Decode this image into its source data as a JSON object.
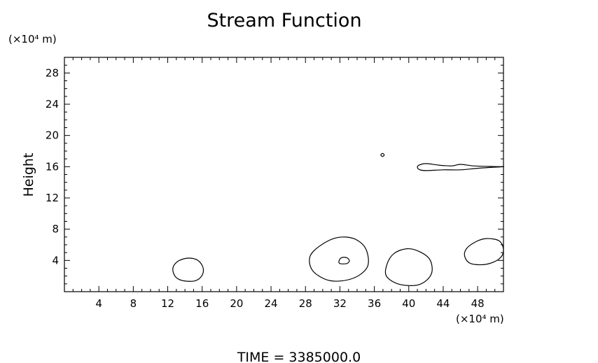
{
  "chart_data": {
    "type": "contour",
    "title": "Stream Function",
    "ylabel": "Height",
    "xlabel": "",
    "y_unit": "(×10⁴ m)",
    "x_unit": "(×10⁴ m)",
    "xlim": [
      0,
      51
    ],
    "ylim": [
      0,
      30
    ],
    "x_ticks": [
      4,
      8,
      12,
      16,
      20,
      24,
      28,
      32,
      36,
      40,
      44,
      48
    ],
    "y_ticks": [
      4,
      8,
      12,
      16,
      20,
      24,
      28
    ],
    "grid": false,
    "footer": "TIME  =  3385000.0",
    "contours": [
      {
        "points": [
          [
            41.0,
            15.9
          ],
          [
            41.2,
            16.2
          ],
          [
            42.0,
            16.4
          ],
          [
            43.5,
            16.2
          ],
          [
            45.0,
            16.1
          ],
          [
            46.0,
            16.3
          ],
          [
            47.5,
            16.1
          ],
          [
            49.0,
            16.05
          ],
          [
            50.5,
            16.0
          ],
          [
            51.0,
            16.0
          ],
          [
            49.5,
            15.9
          ],
          [
            48.0,
            15.8
          ],
          [
            46.0,
            15.6
          ],
          [
            44.0,
            15.6
          ],
          [
            42.0,
            15.5
          ],
          [
            41.3,
            15.6
          ]
        ]
      },
      {
        "points": [
          [
            36.95,
            17.7
          ],
          [
            37.15,
            17.5
          ],
          [
            36.95,
            17.3
          ],
          [
            36.75,
            17.5
          ]
        ]
      },
      {
        "points": [
          [
            30.9,
            1.4
          ],
          [
            33.5,
            1.7
          ],
          [
            35.2,
            3.2
          ],
          [
            35.0,
            5.5
          ],
          [
            33.6,
            6.8
          ],
          [
            31.6,
            6.9
          ],
          [
            29.6,
            5.8
          ],
          [
            28.5,
            4.4
          ],
          [
            28.9,
            2.6
          ]
        ]
      },
      {
        "points": [
          [
            32.0,
            3.6
          ],
          [
            32.8,
            3.6
          ],
          [
            33.1,
            3.95
          ],
          [
            32.8,
            4.35
          ],
          [
            32.2,
            4.35
          ],
          [
            31.9,
            3.95
          ]
        ]
      },
      {
        "points": [
          [
            38.9,
            0.95
          ],
          [
            41.2,
            0.9
          ],
          [
            42.6,
            2.2
          ],
          [
            42.5,
            4.0
          ],
          [
            41.3,
            5.1
          ],
          [
            39.8,
            5.5
          ],
          [
            38.3,
            4.9
          ],
          [
            37.5,
            3.6
          ],
          [
            37.4,
            2.0
          ]
        ]
      },
      {
        "points": [
          [
            47.2,
            3.6
          ],
          [
            49.0,
            3.5
          ],
          [
            50.5,
            4.2
          ],
          [
            51.0,
            5.3
          ],
          [
            50.5,
            6.5
          ],
          [
            49.0,
            6.8
          ],
          [
            47.8,
            6.4
          ],
          [
            46.7,
            5.5
          ],
          [
            46.5,
            4.5
          ]
        ]
      },
      {
        "points": [
          [
            13.8,
            1.4
          ],
          [
            15.2,
            1.4
          ],
          [
            16.0,
            2.1
          ],
          [
            16.1,
            3.1
          ],
          [
            15.5,
            4.0
          ],
          [
            14.4,
            4.3
          ],
          [
            13.2,
            3.9
          ],
          [
            12.6,
            3.0
          ],
          [
            12.9,
            1.9
          ]
        ]
      }
    ]
  }
}
